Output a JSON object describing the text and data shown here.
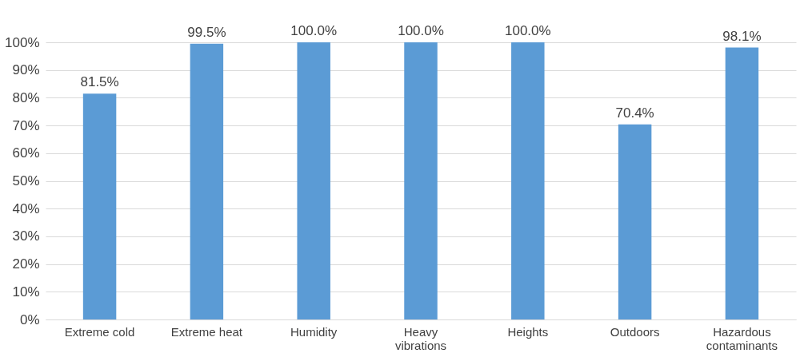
{
  "chart_data": {
    "type": "bar",
    "categories": [
      "Extreme cold",
      "Extreme heat",
      "Humidity",
      "Heavy vibrations",
      "Heights",
      "Outdoors",
      "Hazardous contaminants"
    ],
    "values": [
      81.5,
      99.5,
      100.0,
      100.0,
      100.0,
      70.4,
      98.1
    ],
    "value_labels": [
      "81.5%",
      "99.5%",
      "100.0%",
      "100.0%",
      "100.0%",
      "70.4%",
      "98.1%"
    ],
    "color": "#5b9bd5",
    "ylim": [
      0,
      100
    ],
    "yticks": [
      {
        "value": 0,
        "label": "0%"
      },
      {
        "value": 10,
        "label": "10%"
      },
      {
        "value": 20,
        "label": "20%"
      },
      {
        "value": 30,
        "label": "30%"
      },
      {
        "value": 40,
        "label": "40%"
      },
      {
        "value": 50,
        "label": "50%"
      },
      {
        "value": 60,
        "label": "60%"
      },
      {
        "value": 70,
        "label": "70%"
      },
      {
        "value": 80,
        "label": "80%"
      },
      {
        "value": 90,
        "label": "90%"
      },
      {
        "value": 100,
        "label": "100%"
      }
    ],
    "grid": "y"
  }
}
